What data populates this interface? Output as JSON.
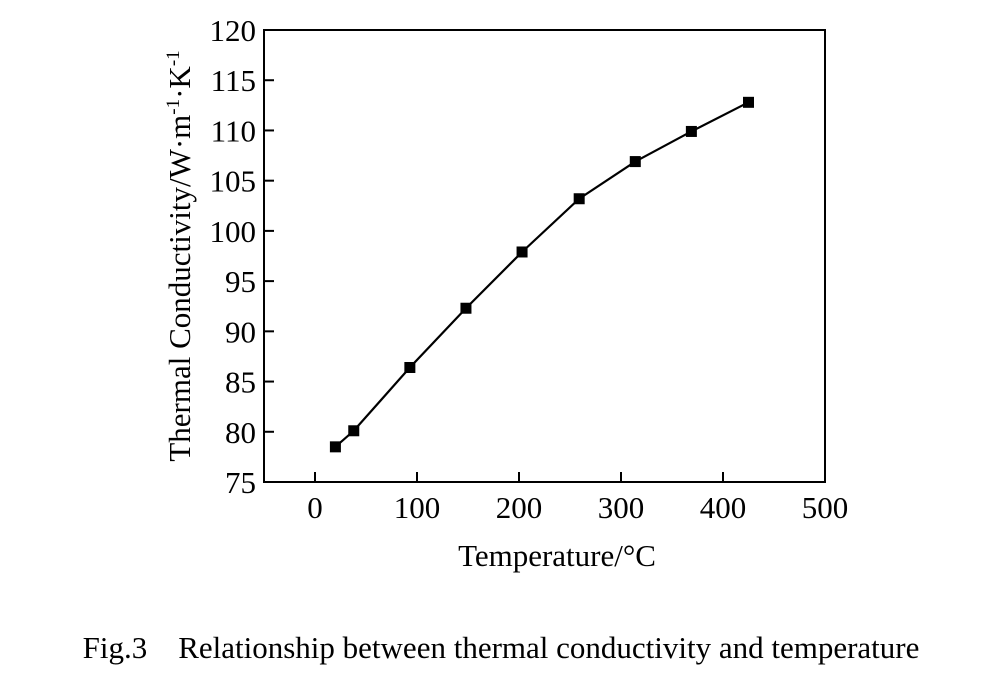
{
  "chart_data": {
    "type": "line",
    "markers": "square",
    "x": [
      20,
      38,
      93,
      148,
      203,
      259,
      314,
      369,
      425
    ],
    "y": [
      78.5,
      80.1,
      86.4,
      92.3,
      97.9,
      103.2,
      106.9,
      109.9,
      112.8
    ],
    "xlabel": "Temperature/°C",
    "ylabel_parts": [
      "Thermal Conductivity/W·m",
      "-1",
      "·K",
      "-1"
    ],
    "xlim": [
      -50,
      500
    ],
    "ylim": [
      75,
      120
    ],
    "xticks": [
      0,
      100,
      200,
      300,
      400,
      500
    ],
    "yticks": [
      75,
      80,
      85,
      90,
      95,
      100,
      105,
      110,
      115,
      120
    ],
    "grid": false,
    "line_color": "#000000",
    "marker_color": "#000000"
  },
  "caption": "Fig.3    Relationship between thermal conductivity and temperature"
}
